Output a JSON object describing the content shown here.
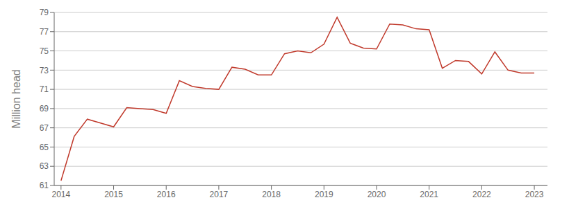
{
  "chart_data": {
    "type": "line",
    "ylabel": "Million head",
    "x": [
      2014.0,
      2014.25,
      2014.5,
      2014.75,
      2015.0,
      2015.25,
      2015.5,
      2015.75,
      2016.0,
      2016.25,
      2016.5,
      2016.75,
      2017.0,
      2017.25,
      2017.5,
      2017.75,
      2018.0,
      2018.25,
      2018.5,
      2018.75,
      2019.0,
      2019.25,
      2019.5,
      2019.75,
      2020.0,
      2020.25,
      2020.5,
      2020.75,
      2021.0,
      2021.25,
      2021.5,
      2021.75,
      2022.0,
      2022.25,
      2022.5,
      2022.75,
      2023.0
    ],
    "values": [
      61.5,
      66.1,
      67.9,
      67.5,
      67.1,
      69.1,
      69.0,
      68.9,
      68.5,
      71.9,
      71.3,
      71.1,
      71.0,
      73.3,
      73.1,
      72.5,
      72.5,
      74.7,
      75.0,
      74.8,
      75.7,
      78.5,
      75.8,
      75.3,
      75.2,
      77.8,
      77.7,
      77.3,
      77.2,
      73.2,
      74.0,
      73.9,
      72.6,
      74.9,
      73.0,
      72.7,
      72.7
    ],
    "color": "#c0392b",
    "xlim": [
      2013.87,
      2023.25
    ],
    "xticks": [
      2014,
      2015,
      2016,
      2017,
      2018,
      2019,
      2020,
      2021,
      2022,
      2023
    ],
    "ylim": [
      61,
      79
    ],
    "yticks": [
      61,
      63,
      65,
      67,
      69,
      71,
      73,
      75,
      77,
      79
    ],
    "grid": true
  }
}
